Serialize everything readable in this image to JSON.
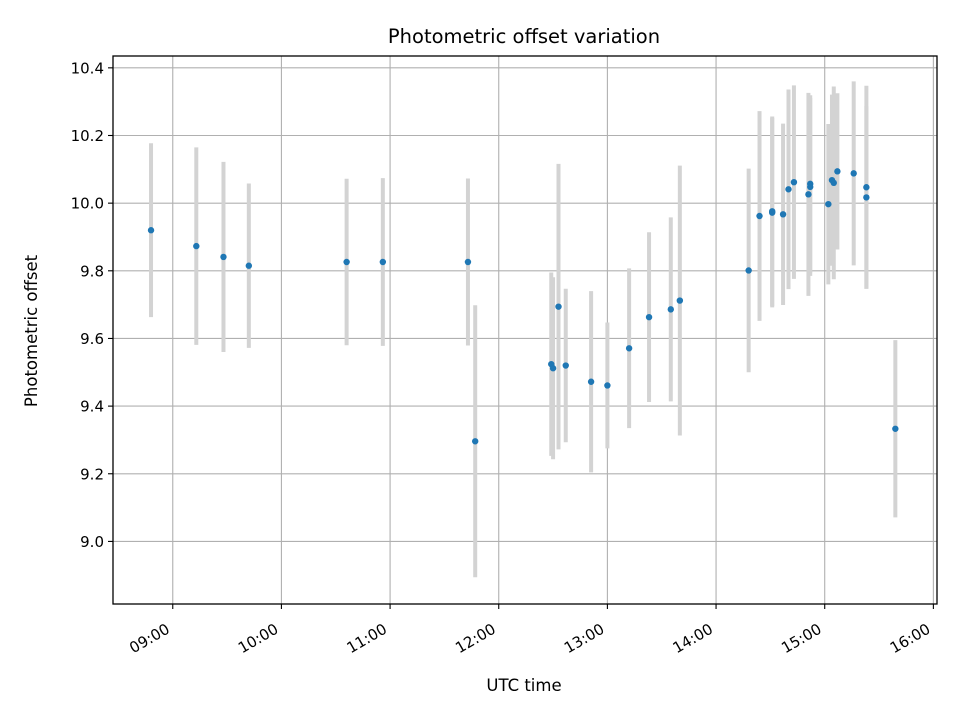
{
  "chart_data": {
    "type": "scatter",
    "title": "Photometric offset variation",
    "xlabel": "UTC time",
    "ylabel": "Photometric offset",
    "x_axis_kind": "time",
    "xlim": [
      "08:27",
      "16:02"
    ],
    "ylim": [
      8.815,
      10.435
    ],
    "x_ticks": [
      "09:00",
      "10:00",
      "11:00",
      "12:00",
      "13:00",
      "14:00",
      "15:00",
      "16:00"
    ],
    "y_ticks": [
      9.0,
      9.2,
      9.4,
      9.6,
      9.8,
      10.0,
      10.2,
      10.4
    ],
    "y_tick_labels": [
      "9.0",
      "9.2",
      "9.4",
      "9.6",
      "9.8",
      "10.0",
      "10.2",
      "10.4"
    ],
    "grid": true,
    "marker_color": "#1f77b4",
    "errorbar_color": "#d3d3d3",
    "points": [
      {
        "t": "08:48",
        "y": 9.92,
        "err": 0.257
      },
      {
        "t": "09:13",
        "y": 9.873,
        "err": 0.292
      },
      {
        "t": "09:28",
        "y": 9.841,
        "err": 0.281
      },
      {
        "t": "09:42",
        "y": 9.815,
        "err": 0.243
      },
      {
        "t": "10:36",
        "y": 9.826,
        "err": 0.246
      },
      {
        "t": "10:56",
        "y": 9.826,
        "err": 0.248
      },
      {
        "t": "11:43",
        "y": 9.826,
        "err": 0.247
      },
      {
        "t": "11:47",
        "y": 9.296,
        "err": 0.402
      },
      {
        "t": "12:29",
        "y": 9.524,
        "err": 0.271
      },
      {
        "t": "12:30",
        "y": 9.512,
        "err": 0.269
      },
      {
        "t": "12:33",
        "y": 9.694,
        "err": 0.422
      },
      {
        "t": "12:37",
        "y": 9.52,
        "err": 0.227
      },
      {
        "t": "12:51",
        "y": 9.472,
        "err": 0.268
      },
      {
        "t": "13:00",
        "y": 9.461,
        "err": 0.186
      },
      {
        "t": "13:12",
        "y": 9.571,
        "err": 0.236
      },
      {
        "t": "13:23",
        "y": 9.663,
        "err": 0.251
      },
      {
        "t": "13:35",
        "y": 9.686,
        "err": 0.272
      },
      {
        "t": "13:40",
        "y": 9.712,
        "err": 0.399
      },
      {
        "t": "14:18",
        "y": 9.801,
        "err": 0.301
      },
      {
        "t": "14:24",
        "y": 9.962,
        "err": 0.31
      },
      {
        "t": "14:31",
        "y": 9.976,
        "err": 0.28
      },
      {
        "t": "14:31",
        "y": 9.972,
        "err": 0.28
      },
      {
        "t": "14:37",
        "y": 9.967,
        "err": 0.268
      },
      {
        "t": "14:40",
        "y": 10.041,
        "err": 0.295
      },
      {
        "t": "14:43",
        "y": 10.062,
        "err": 0.286
      },
      {
        "t": "14:51",
        "y": 10.026,
        "err": 0.3
      },
      {
        "t": "14:52",
        "y": 10.057,
        "err": 0.262
      },
      {
        "t": "14:52",
        "y": 10.048,
        "err": 0.263
      },
      {
        "t": "15:02",
        "y": 9.997,
        "err": 0.237
      },
      {
        "t": "15:04",
        "y": 10.068,
        "err": 0.253
      },
      {
        "t": "15:05",
        "y": 10.06,
        "err": 0.285
      },
      {
        "t": "15:07",
        "y": 10.094,
        "err": 0.231
      },
      {
        "t": "15:16",
        "y": 10.088,
        "err": 0.272
      },
      {
        "t": "15:23",
        "y": 10.017,
        "err": 0.27
      },
      {
        "t": "15:23",
        "y": 10.047,
        "err": 0.3
      },
      {
        "t": "15:39",
        "y": 9.333,
        "err": 0.262
      }
    ]
  }
}
